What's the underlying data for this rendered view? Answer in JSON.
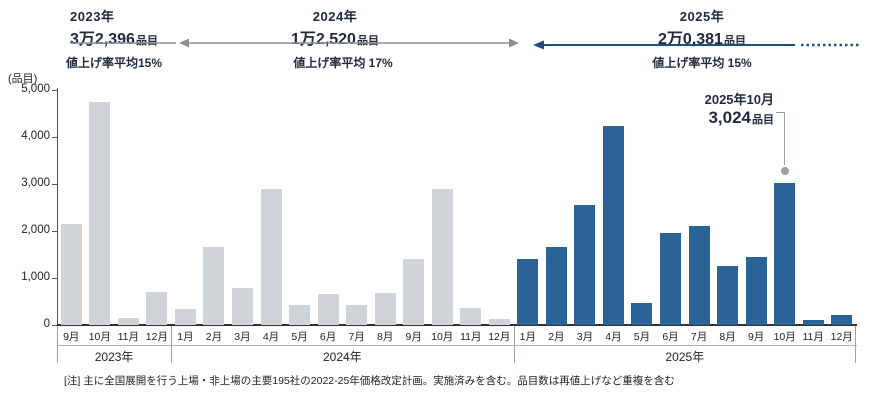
{
  "headers": [
    {
      "year": "2023年",
      "count": "3万2,396",
      "count_unit": "品目",
      "rate": "値上げ率平均15%"
    },
    {
      "year": "2024年",
      "count": "1万2,520",
      "count_unit": "品目",
      "rate": "値上げ率平均 17%"
    },
    {
      "year": "2025年",
      "count": "2万0,381",
      "count_unit": "品目",
      "rate": "値上げ率平均 15%"
    }
  ],
  "callout": {
    "date_label": "2025年10月",
    "value": "3,024",
    "unit": "品目"
  },
  "footnote": "[注] 主に全国展開を行う上場・非上場の主要195社の2022-25年価格改定計画。実施済みを含む。品目数は再値上げなど重複を含む",
  "colors": {
    "bar_past": "#cfd4d8",
    "bar_2025": "#2a6496",
    "arrow_past": "#8a8f94",
    "arrow_2025": "#1f4e79",
    "callout_dot": "#9aa0a6"
  },
  "chart_data": {
    "type": "bar",
    "title": "",
    "xlabel": "",
    "ylabel": "(品目)",
    "ylim": [
      0,
      5000
    ],
    "ytick_step": 1000,
    "yticks": [
      "0",
      "1,000",
      "2,000",
      "3,000",
      "4,000",
      "5,000"
    ],
    "grid": false,
    "legend": "none",
    "groups": [
      {
        "year_label": "2023年",
        "color": "#cfd4d8",
        "months": [
          "9月",
          "10月",
          "11月",
          "12月"
        ],
        "values": [
          2150,
          4750,
          150,
          700
        ]
      },
      {
        "year_label": "2024年",
        "color": "#cfd4d8",
        "months": [
          "1月",
          "2月",
          "3月",
          "4月",
          "5月",
          "6月",
          "7月",
          "8月",
          "9月",
          "10月",
          "11月",
          "12月"
        ],
        "values": [
          350,
          1650,
          780,
          2900,
          430,
          650,
          420,
          680,
          1400,
          2900,
          370,
          130
        ]
      },
      {
        "year_label": "2025年",
        "color": "#2a6496",
        "months": [
          "1月",
          "2月",
          "3月",
          "4月",
          "5月",
          "6月",
          "7月",
          "8月",
          "9月",
          "10月",
          "11月",
          "12月"
        ],
        "values": [
          1400,
          1650,
          2550,
          4225,
          460,
          1950,
          2100,
          1250,
          1450,
          3024,
          100,
          210
        ]
      }
    ],
    "annotation": {
      "label": "2025年10月",
      "value": 3024,
      "target_group": 2,
      "target_month_index": 9
    }
  }
}
